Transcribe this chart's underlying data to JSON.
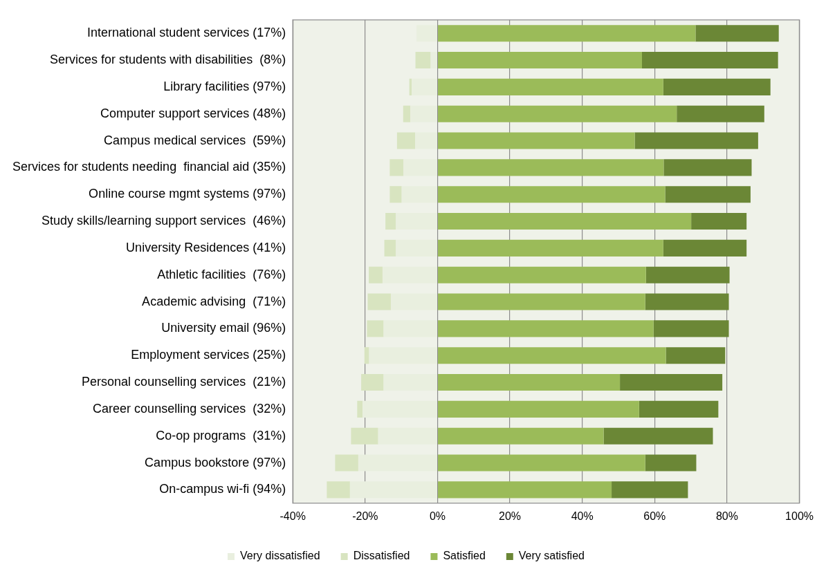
{
  "chart_data": {
    "type": "bar",
    "orientation": "horizontal",
    "stacked": true,
    "grid": "x",
    "legend": "bottom",
    "categories": [
      "International student services (17%)",
      "Services for students with disabilities  (8%)",
      "Library facilities (97%)",
      "Computer support services (48%)",
      "Campus medical services  (59%)",
      "Services for students needing  financial aid (35%)",
      "Online course mgmt systems (97%)",
      "Study skills/learning support services  (46%)",
      "University Residences (41%)",
      "Athletic facilities  (76%)",
      "Academic advising  (71%)",
      "University email (96%)",
      "Employment services (25%)",
      "Personal counselling services  (21%)",
      "Career counselling services  (32%)",
      "Co-op programs  (31%)",
      "Campus bookstore (97%)",
      "On-campus wi-fi (94%)"
    ],
    "series": [
      {
        "name": "Very dissatisfied",
        "color": "#e9efdf",
        "values": [
          -5.8,
          -1.9,
          -7.1,
          -7.5,
          -6.2,
          -9.4,
          -9.9,
          -11.5,
          -11.5,
          -15.2,
          -12.9,
          -14.9,
          -18.9,
          -14.9,
          -20.7,
          -16.4,
          -21.9,
          -24.2
        ]
      },
      {
        "name": "Dissatisfied",
        "color": "#d8e4c0",
        "values": [
          0,
          -4.2,
          -0.7,
          -2.0,
          -5.0,
          -3.8,
          -3.3,
          -2.9,
          -3.2,
          -3.8,
          -6.4,
          -4.6,
          -1.3,
          -6.2,
          -1.5,
          -7.5,
          -6.4,
          -6.4
        ]
      },
      {
        "name": "Satisfied",
        "color": "#9bbb59",
        "values": [
          71.3,
          56.5,
          62.4,
          66.1,
          54.5,
          62.5,
          62.9,
          70.1,
          62.4,
          57.6,
          57.4,
          59.7,
          63.1,
          50.4,
          55.7,
          45.9,
          57.4,
          48.1
        ]
      },
      {
        "name": "Very satisfied",
        "color": "#6b8736",
        "values": [
          23.0,
          37.6,
          29.6,
          24.2,
          34.1,
          24.3,
          23.6,
          15.3,
          23.0,
          23.1,
          23.1,
          20.8,
          16.4,
          28.3,
          21.9,
          30.2,
          14.1,
          21.1
        ]
      }
    ],
    "xlim": [
      -40,
      100
    ],
    "xticks": [
      {
        "value": -40,
        "label": "-40%"
      },
      {
        "value": -20,
        "label": "-20%"
      },
      {
        "value": 0,
        "label": "0%"
      },
      {
        "value": 20,
        "label": "20%"
      },
      {
        "value": 40,
        "label": "40%"
      },
      {
        "value": 60,
        "label": "60%"
      },
      {
        "value": 80,
        "label": "80%"
      },
      {
        "value": 100,
        "label": "100%"
      }
    ]
  }
}
